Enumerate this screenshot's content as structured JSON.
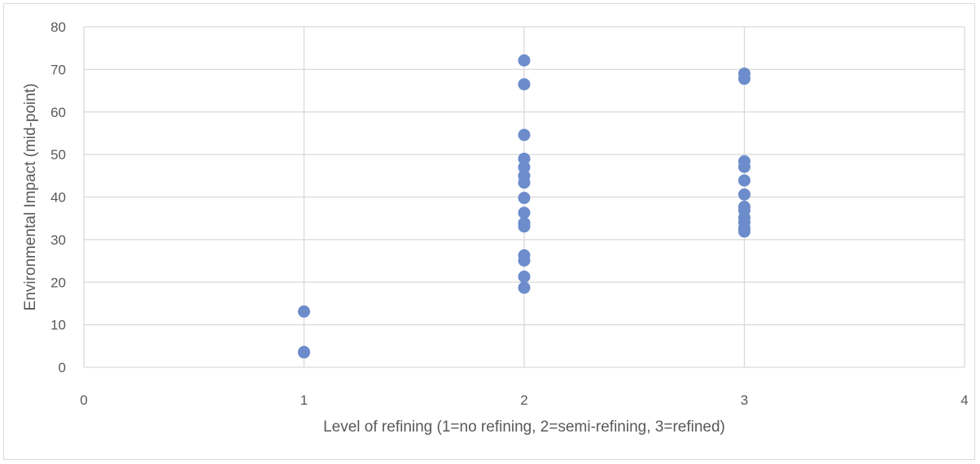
{
  "chart_data": {
    "type": "scatter",
    "title": "",
    "xlabel": "Level of refining (1=no refining, 2=semi-refining, 3=refined)",
    "ylabel": "Environmental Impact (mid-point)",
    "xlim": [
      0,
      4
    ],
    "ylim": [
      0,
      80
    ],
    "xticks": [
      "0",
      "1",
      "2",
      "3",
      "4"
    ],
    "yticks": [
      "0",
      "10",
      "20",
      "30",
      "40",
      "50",
      "60",
      "70",
      "80"
    ],
    "grid": true,
    "legend": "none",
    "marker_color": "#6c8ccb",
    "gridline_color": "#d9d9d9",
    "points": [
      {
        "x": 1,
        "y": 13.1
      },
      {
        "x": 1,
        "y": 3.5
      },
      {
        "x": 1,
        "y": 3.6
      },
      {
        "x": 2,
        "y": 72.1
      },
      {
        "x": 2,
        "y": 66.5
      },
      {
        "x": 2,
        "y": 54.6
      },
      {
        "x": 2,
        "y": 49.0
      },
      {
        "x": 2,
        "y": 47.0
      },
      {
        "x": 2,
        "y": 45.0
      },
      {
        "x": 2,
        "y": 43.4
      },
      {
        "x": 2,
        "y": 39.8
      },
      {
        "x": 2,
        "y": 36.3
      },
      {
        "x": 2,
        "y": 33.9
      },
      {
        "x": 2,
        "y": 33.1
      },
      {
        "x": 2,
        "y": 26.3
      },
      {
        "x": 2,
        "y": 25.1
      },
      {
        "x": 2,
        "y": 21.3
      },
      {
        "x": 2,
        "y": 18.7
      },
      {
        "x": 3,
        "y": 69.0
      },
      {
        "x": 3,
        "y": 67.8
      },
      {
        "x": 3,
        "y": 48.4
      },
      {
        "x": 3,
        "y": 47.1
      },
      {
        "x": 3,
        "y": 43.9
      },
      {
        "x": 3,
        "y": 40.6
      },
      {
        "x": 3,
        "y": 37.7
      },
      {
        "x": 3,
        "y": 36.9
      },
      {
        "x": 3,
        "y": 35.2
      },
      {
        "x": 3,
        "y": 34.1
      },
      {
        "x": 3,
        "y": 32.7
      },
      {
        "x": 3,
        "y": 31.9
      }
    ]
  }
}
